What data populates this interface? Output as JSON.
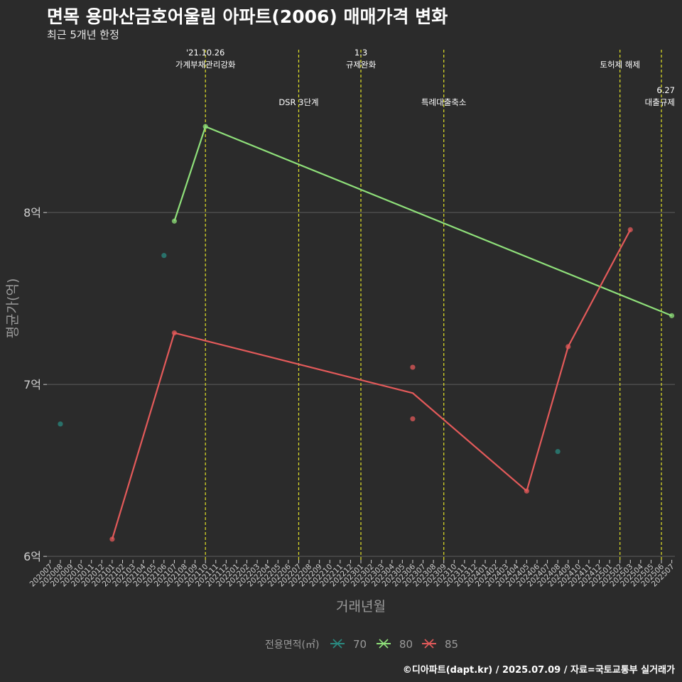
{
  "title": "면목 용마산금호어울림 아파트(2006) 매매가격 변화",
  "subtitle": "최근 5개년 한정",
  "caption": "©디아파트(dapt.kr) / 2025.07.09 / 자료=국토교통부 실거래가",
  "colors": {
    "background": "#2b2b2b",
    "grid": "#5e5e5e",
    "event_line": "#e3e326",
    "s70": "#2a8a80",
    "s80": "#8fe07a",
    "s85": "#e35a5a"
  },
  "chart_data": {
    "type": "line",
    "xlabel": "거래년월",
    "ylabel": "평균가(억)",
    "ylim": [
      5.98,
      8.98
    ],
    "y_ticks": [
      {
        "value": 6,
        "label": "6억"
      },
      {
        "value": 7,
        "label": "7억"
      },
      {
        "value": 8,
        "label": "8억"
      }
    ],
    "x_categories": [
      "202007",
      "202008",
      "202009",
      "202010",
      "202011",
      "202012",
      "202101",
      "202102",
      "202103",
      "202104",
      "202105",
      "202106",
      "202107",
      "202108",
      "202109",
      "202110",
      "202111",
      "202112",
      "202201",
      "202202",
      "202203",
      "202204",
      "202205",
      "202206",
      "202207",
      "202208",
      "202209",
      "202210",
      "202211",
      "202212",
      "202301",
      "202302",
      "202303",
      "202304",
      "202305",
      "202306",
      "202307",
      "202308",
      "202309",
      "202310",
      "202311",
      "202312",
      "202401",
      "202402",
      "202403",
      "202404",
      "202405",
      "202406",
      "202407",
      "202408",
      "202409",
      "202410",
      "202411",
      "202412",
      "202501",
      "202502",
      "202503",
      "202504",
      "202505",
      "202506",
      "202507"
    ],
    "legend": {
      "title": "전용면적(㎡)",
      "position": "bottom"
    },
    "events": [
      {
        "x": "202110",
        "label": [
          "'21.10.26",
          "가계부채관리강화"
        ],
        "row": "high"
      },
      {
        "x": "202207",
        "label": [
          "DSR 3단계"
        ],
        "row": "low"
      },
      {
        "x": "202301",
        "label": [
          "1.3",
          "규제완화"
        ],
        "row": "high"
      },
      {
        "x": "202309",
        "label": [
          "특례대출축소"
        ],
        "row": "low"
      },
      {
        "x": "202502",
        "label": [
          "토허제 해제"
        ],
        "row": "high"
      },
      {
        "x": "202506",
        "label": [
          "6.27",
          "대출규제"
        ],
        "row": "low"
      }
    ],
    "series": [
      {
        "name": "70",
        "color_key": "s70",
        "line": [],
        "points": [
          [
            "202008",
            6.77
          ],
          [
            "202106",
            7.75
          ],
          [
            "202408",
            6.61
          ]
        ]
      },
      {
        "name": "80",
        "color_key": "s80",
        "line": [
          [
            "202107",
            7.95
          ],
          [
            "202110",
            8.5
          ],
          [
            "202507",
            7.4
          ]
        ],
        "points": [
          [
            "202107",
            7.95
          ],
          [
            "202110",
            8.5
          ],
          [
            "202507",
            7.4
          ]
        ]
      },
      {
        "name": "85",
        "color_key": "s85",
        "line": [
          [
            "202101",
            6.1
          ],
          [
            "202107",
            7.3
          ],
          [
            "202306",
            6.95
          ],
          [
            "202405",
            6.38
          ],
          [
            "202409",
            7.22
          ],
          [
            "202503",
            7.9
          ]
        ],
        "points": [
          [
            "202101",
            6.1
          ],
          [
            "202107",
            7.3
          ],
          [
            "202306",
            7.1
          ],
          [
            "202306",
            6.8
          ],
          [
            "202405",
            6.38
          ],
          [
            "202409",
            7.22
          ],
          [
            "202503",
            7.9
          ]
        ]
      }
    ]
  }
}
